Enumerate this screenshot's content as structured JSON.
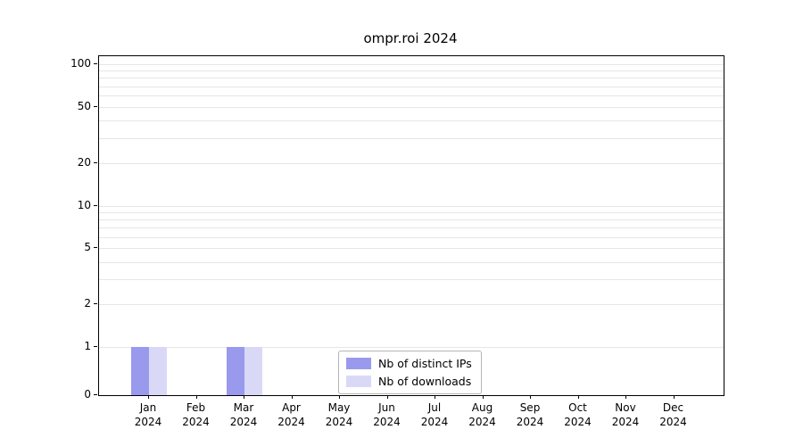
{
  "chart_data": {
    "type": "bar",
    "title": "ompr.roi 2024",
    "year_label": "2024",
    "categories": [
      "Jan",
      "Feb",
      "Mar",
      "Apr",
      "May",
      "Jun",
      "Jul",
      "Aug",
      "Sep",
      "Oct",
      "Nov",
      "Dec"
    ],
    "series": [
      {
        "name": "Nb of distinct IPs",
        "color": "#9999ee",
        "values": [
          1,
          0,
          1,
          0,
          0,
          0,
          0,
          0,
          0,
          0,
          0,
          0
        ]
      },
      {
        "name": "Nb of downloads",
        "color": "#d9d9f7",
        "values": [
          1,
          0,
          1,
          0,
          0,
          0,
          0,
          0,
          0,
          0,
          0,
          0
        ]
      }
    ],
    "y_ticks": [
      0,
      1,
      2,
      5,
      10,
      20,
      50,
      100
    ],
    "y_scale": "log above 1, zero baseline shown",
    "ylim": [
      0,
      100
    ],
    "grid": "horizontal minor log gridlines",
    "legend_position": "inside plot, lower center"
  }
}
